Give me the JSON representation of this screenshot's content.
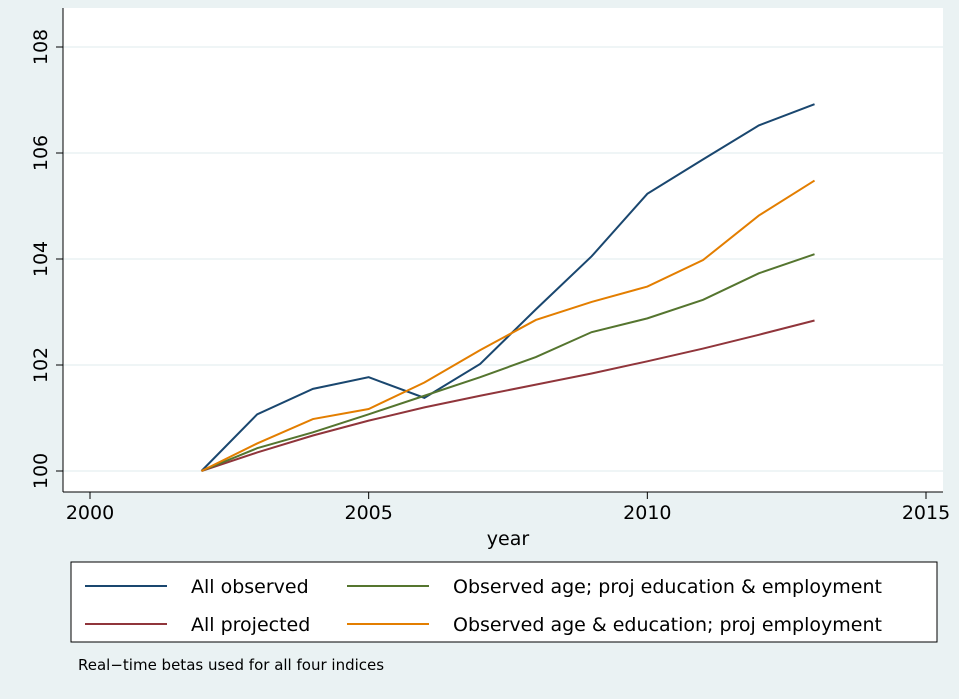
{
  "chart_data": {
    "type": "line",
    "x": [
      2002,
      2003,
      2004,
      2005,
      2006,
      2007,
      2008,
      2009,
      2010,
      2011,
      2012,
      2013
    ],
    "series": [
      {
        "name": "All observed",
        "color": "#1a476f",
        "values": [
          100,
          101.07,
          101.55,
          101.77,
          101.38,
          102.02,
          103.05,
          104.05,
          105.23,
          105.88,
          106.52,
          106.92
        ]
      },
      {
        "name": "All projected",
        "color": "#90353b",
        "values": [
          100,
          100.35,
          100.67,
          100.95,
          101.2,
          101.42,
          101.63,
          101.84,
          102.07,
          102.31,
          102.57,
          102.84
        ]
      },
      {
        "name": "Observed age; proj education & employment",
        "color": "#55752f",
        "values": [
          100,
          100.43,
          100.73,
          101.07,
          101.42,
          101.77,
          102.15,
          102.62,
          102.88,
          103.23,
          103.73,
          104.09
        ]
      },
      {
        "name": "Observed age & education; proj employment",
        "color": "#e37e00",
        "values": [
          100,
          100.52,
          100.98,
          101.17,
          101.67,
          102.28,
          102.85,
          103.19,
          103.48,
          103.98,
          104.82,
          105.48
        ]
      }
    ],
    "x_label": "year",
    "note": "Real−time betas used for all four indices",
    "xlim": [
      2000,
      2015
    ],
    "xticks": [
      2000,
      2005,
      2010,
      2015
    ],
    "ylim": [
      100,
      108
    ],
    "yticks": [
      100,
      102,
      104,
      106,
      108
    ],
    "grid": true,
    "legend": "bottom"
  }
}
